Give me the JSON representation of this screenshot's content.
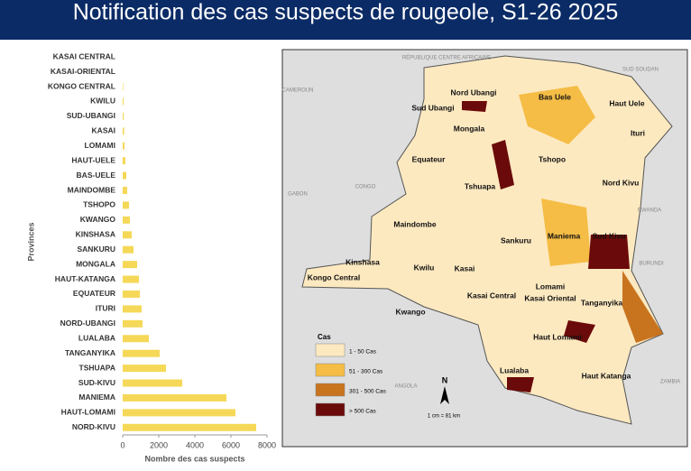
{
  "chart_data": {
    "type": "barh",
    "title": "Notification des cas suspects de rougeole, S1-26 2025",
    "categories": [
      "KASAI CENTRAL",
      "KASAI-ORIENTAL",
      "KONGO CENTRAL",
      "KWILU",
      "SUD-UBANGI",
      "KASAI",
      "LOMAMI",
      "HAUT-UELE",
      "BAS-UELE",
      "MAINDOMBE",
      "TSHOPO",
      "KWANGO",
      "KINSHASA",
      "SANKURU",
      "MONGALA",
      "HAUT-KATANGA",
      "EQUATEUR",
      "ITURI",
      "NORD-UBANGI",
      "LUALABA",
      "TANGANYIKA",
      "TSHUAPA",
      "SUD-KIVU",
      "MANIEMA",
      "HAUT-LOMAMI",
      "NORD-KIVU"
    ],
    "values": [
      0,
      0,
      30,
      50,
      60,
      80,
      100,
      150,
      200,
      250,
      350,
      400,
      500,
      600,
      800,
      900,
      950,
      1050,
      1100,
      1450,
      2050,
      2400,
      3300,
      5750,
      6250,
      7400
    ],
    "color": "#f5d857",
    "xlim": [
      0,
      8000
    ],
    "xticks": [
      0,
      2000,
      4000,
      6000,
      8000
    ],
    "xlabel": "Nombre des cas suspects",
    "ylabel": "Provinces"
  },
  "map": {
    "legend_title": "Cas",
    "legend": [
      {
        "label": "1 - 50 Cas",
        "color": "#fde9c0"
      },
      {
        "label": "51 - 300 Cas",
        "color": "#f5bd45"
      },
      {
        "label": "301 - 500 Cas",
        "color": "#c8741f"
      },
      {
        "label": "> 500 Cas",
        "color": "#6b0a0a"
      }
    ],
    "scale": "1 cm = 81 km",
    "north": "N",
    "countries": [
      "RÉPUBLIQUE CENTRE AFRICAINE",
      "SUD SOUDAN",
      "CAMEROUN",
      "CONGO",
      "RWANDA",
      "BURUNDI",
      "ANGOLA",
      "ZAMBIA",
      "GABON"
    ],
    "provinces": [
      "Nord Ubangi",
      "Sud Ubangi",
      "Bas Uele",
      "Haut Uele",
      "Mongala",
      "Ituri",
      "Equateur",
      "Tshopo",
      "Tshuapa",
      "Nord Kivu",
      "Maindombe",
      "Sud Kivu",
      "Maniema",
      "Sankuru",
      "Kinshasa",
      "Kwilu",
      "Kasai",
      "Kongo Central",
      "Lomami",
      "Kasai Central",
      "Kasai Oriental",
      "Tanganyika",
      "Kwango",
      "Haut Lomami",
      "Lualaba",
      "Haut Katanga"
    ]
  }
}
